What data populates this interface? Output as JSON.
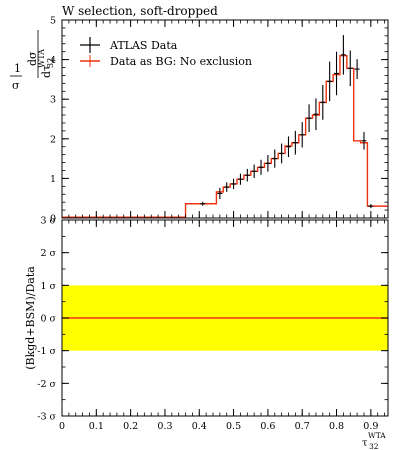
{
  "chart_data": [
    {
      "type": "line",
      "title": "W selection, soft-dropped",
      "ylabel_fraction_numerator": "1",
      "ylabel_fraction_denominator": "σ",
      "ylabel_diff_numerator": "dσ",
      "ylabel_diff_denominator": "dτ",
      "ylabel_diff_sub": "32",
      "ylabel_diff_sup": "WTA",
      "xlim": [
        0,
        0.95
      ],
      "ylim": [
        0,
        5
      ],
      "ytick_values": [
        0,
        1,
        2,
        3,
        4,
        5
      ],
      "ytick_labels": [
        "0",
        "1",
        "2",
        "3",
        "4",
        "5"
      ],
      "legend": {
        "placement": "top-left",
        "entries": [
          "ATLAS Data",
          "Data as BG: No exclusion"
        ]
      },
      "series": [
        {
          "name": "ATLAS Data",
          "style": "points-with-errorbars",
          "color": "#000000",
          "x": [
            0.41,
            0.46,
            0.48,
            0.5,
            0.52,
            0.54,
            0.56,
            0.58,
            0.6,
            0.62,
            0.64,
            0.66,
            0.68,
            0.7,
            0.72,
            0.74,
            0.76,
            0.78,
            0.8,
            0.82,
            0.84,
            0.86,
            0.88,
            0.9
          ],
          "y": [
            0.36,
            0.62,
            0.78,
            0.86,
            0.98,
            1.08,
            1.18,
            1.28,
            1.38,
            1.5,
            1.63,
            1.8,
            1.9,
            2.1,
            2.52,
            2.62,
            2.92,
            3.45,
            3.65,
            4.12,
            3.78,
            3.76,
            1.95,
            0.3
          ],
          "yerr": [
            0.05,
            0.14,
            0.12,
            0.13,
            0.14,
            0.16,
            0.17,
            0.19,
            0.21,
            0.23,
            0.25,
            0.26,
            0.3,
            0.32,
            0.35,
            0.4,
            0.44,
            0.5,
            0.55,
            0.5,
            0.45,
            0.25,
            0.22,
            0.05
          ]
        },
        {
          "name": "Data as BG: No exclusion",
          "style": "histogram-step",
          "color": "#ee3311",
          "bin_edges": [
            0,
            0.1,
            0.2,
            0.3,
            0.36,
            0.45,
            0.47,
            0.49,
            0.51,
            0.53,
            0.55,
            0.57,
            0.59,
            0.61,
            0.63,
            0.65,
            0.67,
            0.69,
            0.71,
            0.73,
            0.75,
            0.77,
            0.79,
            0.81,
            0.83,
            0.85,
            0.87,
            0.89,
            0.91,
            0.95
          ],
          "values": [
            0.02,
            0.02,
            0.02,
            0.02,
            0.36,
            0.66,
            0.78,
            0.86,
            0.98,
            1.08,
            1.18,
            1.28,
            1.38,
            1.5,
            1.63,
            1.82,
            1.9,
            2.1,
            2.52,
            2.6,
            2.92,
            3.45,
            3.62,
            4.1,
            3.78,
            1.95,
            1.9,
            0.3,
            0.3
          ]
        }
      ]
    },
    {
      "type": "line",
      "ylabel": "(Bkgd+BSM)/Data",
      "xlabel": "τ",
      "xlabel_sub": "32",
      "xlabel_sup": "WTA",
      "xlim": [
        0,
        0.95
      ],
      "ylim": [
        -3,
        3
      ],
      "xtick_values": [
        0,
        0.1,
        0.2,
        0.3,
        0.4,
        0.5,
        0.6,
        0.7,
        0.8,
        0.9
      ],
      "xtick_labels": [
        "0",
        "0.1",
        "0.2",
        "0.3",
        "0.4",
        "0.5",
        "0.6",
        "0.7",
        "0.8",
        "0.9"
      ],
      "ytick_values": [
        3,
        2,
        1,
        0,
        -1,
        -2,
        -3
      ],
      "ytick_labels": [
        "3 σ",
        "2 σ",
        "1 σ",
        "0 σ",
        "-1 σ",
        "-2 σ",
        "-3 σ"
      ],
      "band": {
        "from": -1,
        "to": 1,
        "color": "#ffff00"
      },
      "series": [
        {
          "style": "line",
          "color": "#ee3311",
          "x": [
            0,
            0.95
          ],
          "y": [
            0,
            0
          ]
        }
      ]
    }
  ]
}
